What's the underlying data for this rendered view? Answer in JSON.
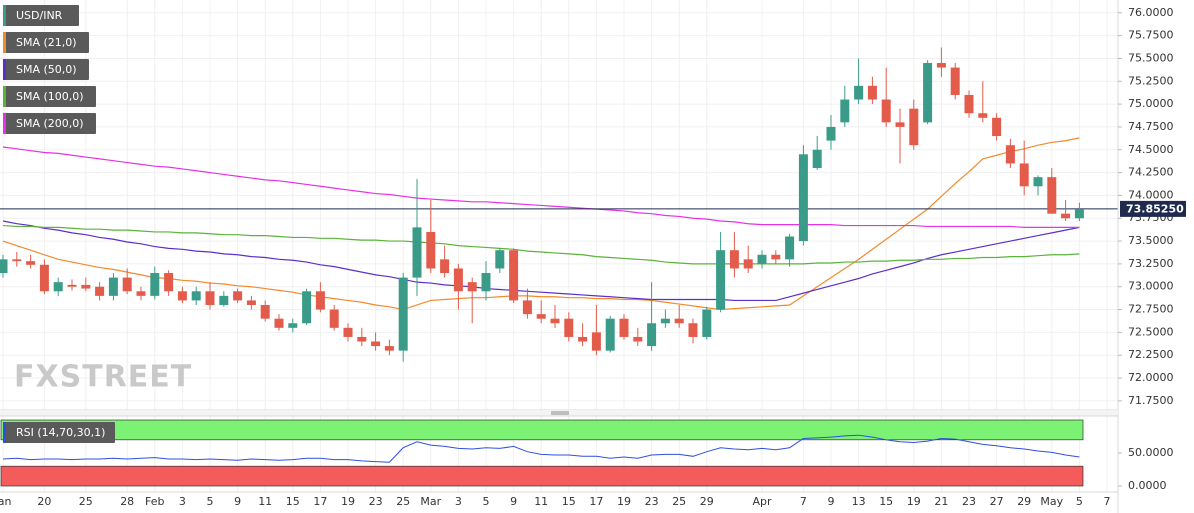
{
  "chart_data": {
    "type": "candlestick",
    "title": "USD/INR",
    "watermark": "FXSTREET",
    "up_color": "#3a9c88",
    "down_color": "#e35b4b",
    "grid": true,
    "xtick_labels": [
      "Jan",
      "20",
      "25",
      "28",
      "Feb",
      "3",
      "5",
      "9",
      "11",
      "15",
      "17",
      "19",
      "23",
      "25",
      "Mar",
      "3",
      "5",
      "9",
      "11",
      "15",
      "17",
      "19",
      "23",
      "25",
      "29",
      "Apr",
      "7",
      "9",
      "13",
      "15",
      "19",
      "21",
      "23",
      "27",
      "29",
      "May",
      "5",
      "7"
    ],
    "open": [
      73.15,
      73.3,
      73.28,
      73.24,
      72.95,
      73.02,
      73.02,
      73.0,
      72.9,
      73.1,
      72.95,
      72.9,
      73.15,
      72.95,
      72.85,
      72.95,
      72.8,
      72.95,
      72.85,
      72.8,
      72.65,
      72.55,
      72.6,
      72.95,
      72.75,
      72.55,
      72.45,
      72.4,
      72.35,
      72.3,
      73.1,
      73.6,
      73.3,
      73.2,
      73.05,
      72.95,
      73.2,
      73.4,
      72.85,
      72.7,
      72.65,
      72.65,
      72.45,
      72.5,
      72.3,
      72.65,
      72.45,
      72.35,
      72.6,
      72.65,
      72.6,
      72.45,
      72.75,
      73.4,
      73.3,
      73.25,
      73.35,
      73.3,
      73.5,
      74.3,
      74.6,
      74.8,
      75.05,
      75.2,
      75.05,
      74.8,
      74.95,
      74.8,
      75.45,
      75.4,
      75.1,
      74.9,
      74.85,
      74.55,
      74.35,
      74.1,
      74.2,
      73.8,
      73.75
    ],
    "high": [
      73.35,
      73.38,
      73.35,
      73.3,
      73.1,
      73.08,
      73.1,
      73.05,
      73.15,
      73.2,
      73.0,
      73.22,
      73.18,
      73.0,
      73.0,
      73.05,
      72.95,
      72.98,
      72.9,
      72.85,
      72.7,
      72.65,
      72.98,
      73.05,
      72.8,
      72.6,
      72.55,
      72.5,
      72.42,
      73.15,
      74.18,
      73.95,
      73.45,
      73.25,
      73.1,
      73.28,
      73.42,
      73.42,
      72.98,
      72.85,
      72.8,
      72.72,
      72.6,
      72.8,
      72.68,
      72.7,
      72.55,
      73.05,
      72.75,
      72.8,
      72.65,
      72.78,
      73.6,
      73.6,
      73.45,
      73.4,
      73.4,
      73.58,
      74.55,
      74.65,
      74.88,
      75.2,
      75.5,
      75.3,
      75.4,
      74.95,
      75.05,
      75.48,
      75.62,
      75.45,
      75.15,
      75.25,
      74.9,
      74.62,
      74.6,
      74.22,
      74.3,
      73.95,
      73.92
    ],
    "low": [
      73.1,
      73.22,
      73.2,
      72.92,
      72.9,
      72.96,
      72.95,
      72.85,
      72.85,
      72.92,
      72.85,
      72.86,
      72.9,
      72.82,
      72.8,
      72.75,
      72.78,
      72.82,
      72.75,
      72.62,
      72.52,
      72.5,
      72.58,
      72.72,
      72.52,
      72.4,
      72.35,
      72.3,
      72.25,
      72.18,
      72.9,
      73.15,
      73.1,
      72.75,
      72.6,
      72.85,
      73.15,
      72.82,
      72.65,
      72.6,
      72.55,
      72.4,
      72.35,
      72.25,
      72.28,
      72.42,
      72.35,
      72.3,
      72.55,
      72.55,
      72.38,
      72.42,
      72.72,
      73.1,
      73.15,
      73.2,
      73.25,
      73.22,
      73.45,
      74.28,
      74.5,
      74.75,
      75.0,
      75.0,
      74.75,
      74.35,
      74.5,
      74.78,
      75.3,
      75.05,
      74.85,
      74.8,
      74.6,
      74.3,
      74.0,
      74.0,
      73.8,
      73.72,
      73.72
    ],
    "close": [
      73.3,
      73.28,
      73.24,
      72.95,
      73.05,
      73.0,
      72.98,
      72.9,
      73.1,
      72.95,
      72.9,
      73.15,
      72.95,
      72.85,
      72.95,
      72.8,
      72.9,
      72.85,
      72.8,
      72.65,
      72.55,
      72.6,
      72.95,
      72.75,
      72.55,
      72.45,
      72.4,
      72.35,
      72.3,
      73.1,
      73.65,
      73.2,
      73.15,
      72.95,
      72.95,
      73.15,
      73.4,
      72.85,
      72.7,
      72.65,
      72.6,
      72.45,
      72.4,
      72.3,
      72.65,
      72.45,
      72.4,
      72.6,
      72.65,
      72.6,
      72.45,
      72.75,
      73.4,
      73.2,
      73.2,
      73.35,
      73.3,
      73.55,
      74.45,
      74.5,
      74.75,
      75.05,
      75.2,
      75.05,
      74.8,
      74.75,
      74.55,
      75.45,
      75.4,
      75.1,
      74.9,
      74.85,
      74.65,
      74.35,
      74.1,
      74.2,
      73.8,
      73.75,
      73.85
    ],
    "series": [
      {
        "name": "SMA (21,0)",
        "color": "#f28a2e",
        "values": [
          73.5,
          73.45,
          73.4,
          73.35,
          73.3,
          73.27,
          73.24,
          73.21,
          73.19,
          73.16,
          73.13,
          73.1,
          73.09,
          73.07,
          73.06,
          73.04,
          73.03,
          73.01,
          73.0,
          72.98,
          72.96,
          72.94,
          72.91,
          72.89,
          72.87,
          72.85,
          72.83,
          72.8,
          72.78,
          72.75,
          72.8,
          72.85,
          72.86,
          72.87,
          72.88,
          72.88,
          72.89,
          72.9,
          72.9,
          72.89,
          72.89,
          72.88,
          72.88,
          72.87,
          72.87,
          72.86,
          72.86,
          72.85,
          72.83,
          72.81,
          72.79,
          72.77,
          72.75,
          72.76,
          72.77,
          72.78,
          72.79,
          72.8,
          72.9,
          73.0,
          73.1,
          73.2,
          73.3,
          73.41,
          73.52,
          73.63,
          73.74,
          73.85,
          73.99,
          74.13,
          74.26,
          74.4,
          74.44,
          74.48,
          74.51,
          74.55,
          74.58,
          74.6,
          74.63
        ]
      },
      {
        "name": "SMA (50,0)",
        "color": "#5b2fc9",
        "values": [
          73.72,
          73.69,
          73.67,
          73.64,
          73.62,
          73.59,
          73.57,
          73.54,
          73.52,
          73.49,
          73.47,
          73.44,
          73.42,
          73.41,
          73.39,
          73.38,
          73.36,
          73.35,
          73.33,
          73.32,
          73.3,
          73.29,
          73.27,
          73.24,
          73.22,
          73.19,
          73.16,
          73.13,
          73.11,
          73.08,
          73.05,
          73.04,
          73.02,
          73.01,
          73.0,
          72.98,
          72.97,
          72.96,
          72.95,
          72.94,
          72.93,
          72.92,
          72.91,
          72.9,
          72.89,
          72.88,
          72.87,
          72.86,
          72.86,
          72.86,
          72.86,
          72.86,
          72.86,
          72.85,
          72.85,
          72.85,
          72.85,
          72.89,
          72.93,
          72.97,
          73.01,
          73.05,
          73.09,
          73.14,
          73.18,
          73.22,
          73.26,
          73.31,
          73.35,
          73.38,
          73.41,
          73.44,
          73.47,
          73.5,
          73.53,
          73.56,
          73.59,
          73.62,
          73.65
        ]
      },
      {
        "name": "SMA (100,0)",
        "color": "#5bb33a",
        "values": [
          73.67,
          73.66,
          73.66,
          73.65,
          73.65,
          73.64,
          73.63,
          73.63,
          73.62,
          73.62,
          73.61,
          73.6,
          73.6,
          73.59,
          73.59,
          73.58,
          73.57,
          73.57,
          73.56,
          73.56,
          73.55,
          73.54,
          73.54,
          73.53,
          73.53,
          73.52,
          73.51,
          73.51,
          73.5,
          73.5,
          73.49,
          73.48,
          73.47,
          73.45,
          73.44,
          73.43,
          73.42,
          73.41,
          73.39,
          73.38,
          73.37,
          73.36,
          73.35,
          73.33,
          73.32,
          73.31,
          73.3,
          73.29,
          73.27,
          73.26,
          73.25,
          73.25,
          73.25,
          73.25,
          73.25,
          73.25,
          73.25,
          73.25,
          73.25,
          73.26,
          73.26,
          73.27,
          73.27,
          73.28,
          73.28,
          73.29,
          73.29,
          73.3,
          73.3,
          73.31,
          73.31,
          73.32,
          73.32,
          73.33,
          73.33,
          73.34,
          73.35,
          73.35,
          73.36
        ]
      },
      {
        "name": "SMA (200,0)",
        "color": "#e632e6",
        "values": [
          74.53,
          74.51,
          74.49,
          74.47,
          74.46,
          74.44,
          74.42,
          74.4,
          74.38,
          74.36,
          74.34,
          74.32,
          74.31,
          74.29,
          74.27,
          74.25,
          74.23,
          74.21,
          74.19,
          74.17,
          74.16,
          74.14,
          74.12,
          74.1,
          74.08,
          74.06,
          74.04,
          74.02,
          74.01,
          73.99,
          73.97,
          73.96,
          73.95,
          73.94,
          73.93,
          73.93,
          73.92,
          73.91,
          73.9,
          73.89,
          73.88,
          73.87,
          73.86,
          73.85,
          73.84,
          73.83,
          73.81,
          73.8,
          73.78,
          73.77,
          73.75,
          73.74,
          73.72,
          73.71,
          73.69,
          73.68,
          73.68,
          73.68,
          73.68,
          73.68,
          73.68,
          73.67,
          73.67,
          73.67,
          73.67,
          73.67,
          73.67,
          73.66,
          73.66,
          73.66,
          73.66,
          73.66,
          73.66,
          73.66,
          73.65,
          73.65,
          73.65,
          73.65,
          73.65
        ]
      }
    ],
    "last_price": {
      "value": 73.8525,
      "label": "73.85250",
      "color": "#1e2b4f"
    },
    "ylim": [
      71.65,
      76.14
    ],
    "yticks": [
      {
        "value": 76.0,
        "label": "76.0000"
      },
      {
        "value": 75.75,
        "label": "75.7500"
      },
      {
        "value": 75.5,
        "label": "75.5000"
      },
      {
        "value": 75.25,
        "label": "75.2500"
      },
      {
        "value": 75.0,
        "label": "75.0000"
      },
      {
        "value": 74.75,
        "label": "74.7500"
      },
      {
        "value": 74.5,
        "label": "74.5000"
      },
      {
        "value": 74.25,
        "label": "74.2500"
      },
      {
        "value": 74.0,
        "label": "74.0000"
      },
      {
        "value": 73.75,
        "label": "73.7500"
      },
      {
        "value": 73.5,
        "label": "73.5000"
      },
      {
        "value": 73.25,
        "label": "73.2500"
      },
      {
        "value": 73.0,
        "label": "73.0000"
      },
      {
        "value": 72.75,
        "label": "72.7500"
      },
      {
        "value": 72.5,
        "label": "72.5000"
      },
      {
        "value": 72.25,
        "label": "72.2500"
      },
      {
        "value": 72.0,
        "label": "72.0000"
      },
      {
        "value": 71.75,
        "label": "71.7500"
      }
    ],
    "rsi": {
      "name": "RSI (14,70,30,1)",
      "color": "#2f4fe0",
      "overbought": 70,
      "oversold": 30,
      "overbought_color": "#7cf274",
      "oversold_color": "#f45b5b",
      "ylim": [
        -28.8,
        107.6
      ],
      "yticks": [
        {
          "value": 50,
          "label": "50.0000"
        },
        {
          "value": 0,
          "label": "0.0000"
        }
      ],
      "values": [
        41,
        42,
        40,
        41,
        41,
        40,
        41,
        41,
        42,
        41,
        42,
        43,
        41,
        41,
        40,
        41,
        40,
        39,
        41,
        40,
        39,
        40,
        42,
        42,
        40,
        40,
        38,
        37,
        36,
        58,
        67,
        62,
        60,
        57,
        56,
        58,
        57,
        60,
        52,
        48,
        47,
        47,
        45,
        45,
        42,
        44,
        42,
        47,
        48,
        48,
        45,
        52,
        58,
        56,
        55,
        57,
        55,
        58,
        72,
        73,
        74,
        76,
        77,
        74,
        70,
        67,
        66,
        68,
        72,
        71,
        67,
        63,
        61,
        58,
        56,
        53,
        51,
        47,
        44
      ]
    }
  }
}
